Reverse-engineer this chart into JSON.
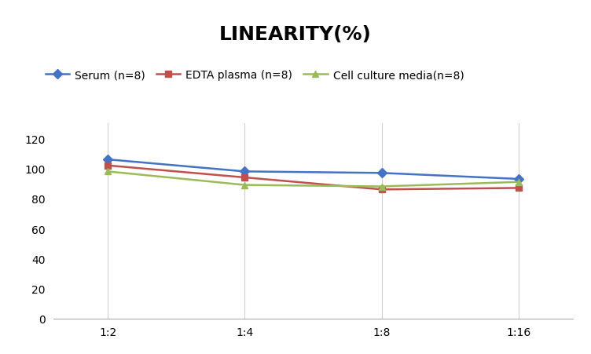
{
  "title": "LINEARITY(%)",
  "title_fontsize": 18,
  "title_fontweight": "bold",
  "x_labels": [
    "1:2",
    "1:4",
    "1:8",
    "1:16"
  ],
  "x_positions": [
    0,
    1,
    2,
    3
  ],
  "series": [
    {
      "label": "Serum (n=8)",
      "values": [
        106,
        98,
        97,
        93
      ],
      "color": "#4472C4",
      "marker": "D",
      "markersize": 6,
      "linewidth": 1.8
    },
    {
      "label": "EDTA plasma (n=8)",
      "values": [
        102,
        94,
        86,
        87
      ],
      "color": "#C0504D",
      "marker": "s",
      "markersize": 6,
      "linewidth": 1.8
    },
    {
      "label": "Cell culture media(n=8)",
      "values": [
        98,
        89,
        88,
        91
      ],
      "color": "#9BBB59",
      "marker": "^",
      "markersize": 6,
      "linewidth": 1.8
    }
  ],
  "ylim": [
    0,
    130
  ],
  "yticks": [
    0,
    20,
    40,
    60,
    80,
    100,
    120
  ],
  "background_color": "#ffffff",
  "grid_color": "#d0d0d0",
  "legend_fontsize": 10,
  "axis_fontsize": 10
}
